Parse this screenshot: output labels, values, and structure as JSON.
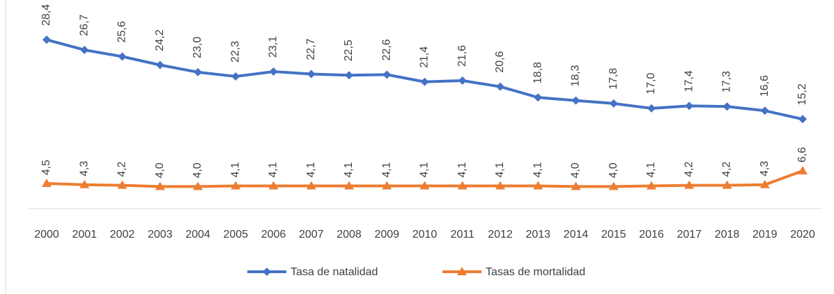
{
  "chart_data": {
    "type": "line",
    "categories": [
      "2000",
      "2001",
      "2002",
      "2003",
      "2004",
      "2005",
      "2006",
      "2007",
      "2008",
      "2009",
      "2010",
      "2011",
      "2012",
      "2013",
      "2014",
      "2015",
      "2016",
      "2017",
      "2018",
      "2019",
      "2020"
    ],
    "series": [
      {
        "name": "Tasa de natalidad",
        "color": "#4472c4",
        "marker": "diamond",
        "values": [
          28.4,
          26.7,
          25.6,
          24.2,
          23.0,
          22.3,
          23.1,
          22.7,
          22.5,
          22.6,
          21.4,
          21.6,
          20.6,
          18.8,
          18.3,
          17.8,
          17.0,
          17.4,
          17.3,
          16.6,
          15.2
        ],
        "value_labels": [
          "28,4",
          "26,7",
          "25,6",
          "24,2",
          "23,0",
          "22,3",
          "23,1",
          "22,7",
          "22,5",
          "22,6",
          "21,4",
          "21,6",
          "20,6",
          "18,8",
          "18,3",
          "17,8",
          "17,0",
          "17,4",
          "17,3",
          "16,6",
          "15,2"
        ]
      },
      {
        "name": "Tasas de mortalidad",
        "color": "#ed7d31",
        "marker": "triangle",
        "values": [
          4.5,
          4.3,
          4.2,
          4.0,
          4.0,
          4.1,
          4.1,
          4.1,
          4.1,
          4.1,
          4.1,
          4.1,
          4.1,
          4.1,
          4.0,
          4.0,
          4.1,
          4.2,
          4.2,
          4.3,
          6.6
        ],
        "value_labels": [
          "4,5",
          "4,3",
          "4,2",
          "4,0",
          "4,0",
          "4,1",
          "4,1",
          "4,1",
          "4,1",
          "4,1",
          "4,1",
          "4,1",
          "4,1",
          "4,1",
          "4,0",
          "4,0",
          "4,1",
          "4,2",
          "4,2",
          "4,3",
          "6,6"
        ]
      }
    ],
    "ylim": [
      0,
      35
    ],
    "legend": "bottom"
  }
}
